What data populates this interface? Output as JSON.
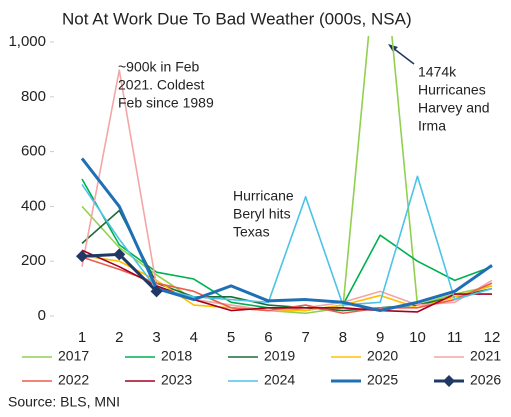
{
  "chart_data": {
    "type": "line",
    "title": "Not At Work Due To Bad Weather (000s, NSA)",
    "categories": [
      "1",
      "2",
      "3",
      "4",
      "5",
      "6",
      "7",
      "8",
      "9",
      "10",
      "11",
      "12"
    ],
    "ylim": [
      0,
      1000
    ],
    "yticks": [
      0,
      200,
      400,
      600,
      800,
      {
        "value": 1000,
        "label": "1,000"
      }
    ],
    "series": [
      {
        "name": "2017",
        "color": "#92d050",
        "values": [
          400,
          250,
          150,
          60,
          40,
          20,
          10,
          30,
          1474,
          40,
          80,
          110
        ]
      },
      {
        "name": "2018",
        "color": "#00b050",
        "values": [
          500,
          260,
          160,
          135,
          50,
          30,
          20,
          40,
          295,
          200,
          130,
          180
        ]
      },
      {
        "name": "2019",
        "color": "#1e6b3a",
        "values": [
          265,
          385,
          120,
          70,
          70,
          40,
          30,
          20,
          30,
          40,
          70,
          100
        ]
      },
      {
        "name": "2020",
        "color": "#ffc000",
        "values": [
          220,
          200,
          130,
          40,
          30,
          20,
          20,
          40,
          75,
          30,
          70,
          110
        ]
      },
      {
        "name": "2021",
        "color": "#f4a6a6",
        "values": [
          180,
          897,
          110,
          60,
          40,
          20,
          30,
          50,
          90,
          40,
          50,
          130
        ]
      },
      {
        "name": "2022",
        "color": "#ee5c4e",
        "values": [
          215,
          170,
          120,
          90,
          30,
          20,
          40,
          10,
          30,
          30,
          60,
          120
        ]
      },
      {
        "name": "2023",
        "color": "#a50021",
        "values": [
          240,
          180,
          110,
          60,
          20,
          30,
          30,
          30,
          20,
          15,
          80,
          80
        ]
      },
      {
        "name": "2024",
        "color": "#4dc3e8",
        "values": [
          480,
          280,
          100,
          70,
          60,
          50,
          435,
          40,
          50,
          510,
          60,
          100
        ]
      },
      {
        "name": "2025",
        "color": "#1f6fb5",
        "values": [
          575,
          400,
          100,
          60,
          110,
          55,
          60,
          50,
          20,
          50,
          90,
          185
        ]
      },
      {
        "name": "2026",
        "color": "#1f3864",
        "values": [
          218,
          225,
          90,
          null,
          null,
          null,
          null,
          null,
          null,
          null,
          null,
          null
        ]
      }
    ],
    "annotations": [
      {
        "lines": [
          "~900k in Feb",
          "2021. Coldest",
          "Feb since 1989"
        ]
      },
      {
        "lines": [
          "Hurricane",
          "Beryl hits",
          "Texas"
        ]
      },
      {
        "lines": [
          "1474k",
          "Hurricanes",
          "Harvey and",
          "Irma"
        ]
      }
    ],
    "source": "Source: BLS, MNI"
  }
}
